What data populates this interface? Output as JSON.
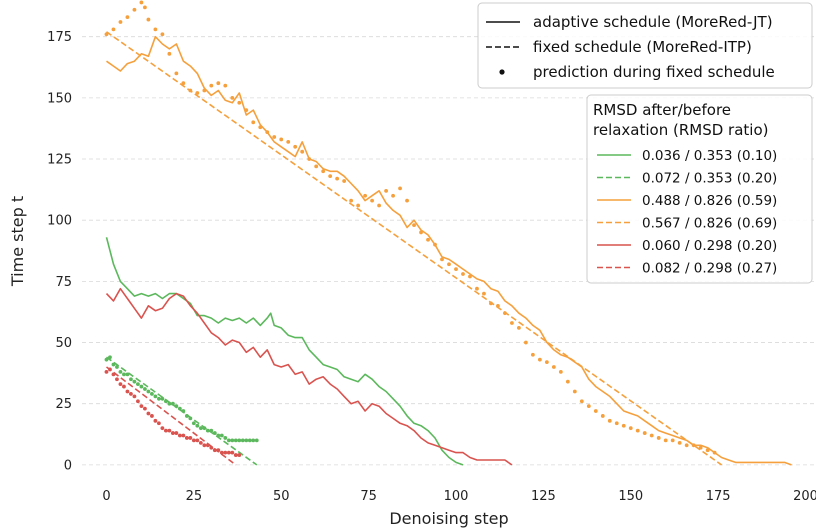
{
  "chart_data": {
    "type": "line",
    "xlabel": "Denoising step",
    "ylabel": "Time step t",
    "xlim": [
      -7,
      203
    ],
    "ylim": [
      -7,
      190
    ],
    "x_ticks": [
      0,
      25,
      50,
      75,
      100,
      125,
      150,
      175,
      200
    ],
    "y_ticks": [
      0,
      25,
      50,
      75,
      100,
      125,
      150,
      175
    ],
    "grid": "horizontal dashed",
    "style_legend": {
      "placement": "top-right",
      "entries": [
        {
          "label": "adaptive schedule (MoreRed-JT)",
          "style": "solid"
        },
        {
          "label": "fixed schedule (MoreRed-ITP)",
          "style": "dashed"
        },
        {
          "label": "prediction during fixed schedule",
          "style": "dot"
        }
      ]
    },
    "rmsd_legend": {
      "placement": "right",
      "title_lines": [
        "RMSD after/before",
        "relaxation (RMSD ratio)"
      ],
      "entries": [
        {
          "label": "0.036 / 0.353 (0.10)",
          "style": "solid",
          "color": "#5cb85c"
        },
        {
          "label": "0.072 / 0.353 (0.20)",
          "style": "dashed",
          "color": "#5cb85c"
        },
        {
          "label": "0.488 / 0.826 (0.59)",
          "style": "solid",
          "color": "#f5a03c"
        },
        {
          "label": "0.567 / 0.826 (0.69)",
          "style": "dashed",
          "color": "#f5a03c"
        },
        {
          "label": "0.060 / 0.298 (0.20)",
          "style": "solid",
          "color": "#d9534f"
        },
        {
          "label": "0.082 / 0.298 (0.27)",
          "style": "dashed",
          "color": "#d9534f"
        }
      ]
    },
    "series": [
      {
        "color": "#5cb85c",
        "kind": "line",
        "dash": false,
        "x": [
          0,
          2,
          4,
          6,
          8,
          10,
          12,
          14,
          16,
          18,
          20,
          22,
          24,
          26,
          28,
          30,
          32,
          34,
          36,
          38,
          40,
          42,
          44,
          46,
          47,
          48,
          50,
          52,
          54,
          56,
          58,
          60,
          62,
          64,
          66,
          68,
          70,
          72,
          74,
          76,
          78,
          80,
          82,
          84,
          86,
          88,
          90,
          92,
          94,
          96,
          98,
          100,
          102
        ],
        "y": [
          93,
          82,
          75,
          72,
          69,
          70,
          69,
          70,
          68,
          70,
          70,
          68,
          66,
          61,
          61,
          60,
          58,
          60,
          59,
          60,
          58,
          60,
          57,
          60,
          62,
          57,
          56,
          53,
          52,
          52,
          47,
          44,
          41,
          40,
          39,
          36,
          35,
          34,
          37,
          35,
          32,
          30,
          27,
          24,
          20,
          17,
          16,
          14,
          11,
          6,
          3,
          1,
          0
        ]
      },
      {
        "color": "#5cb85c",
        "kind": "line",
        "dash": true,
        "x": [
          0,
          43
        ],
        "y": [
          44,
          0
        ]
      },
      {
        "color": "#5cb85c",
        "kind": "dots",
        "x": [
          0,
          1,
          2,
          3,
          4,
          5,
          6,
          7,
          8,
          9,
          10,
          11,
          12,
          13,
          14,
          15,
          16,
          17,
          18,
          19,
          20,
          21,
          22,
          23,
          24,
          25,
          26,
          27,
          28,
          29,
          30,
          31,
          32,
          33,
          34,
          35,
          36,
          37,
          38,
          39,
          40,
          41,
          42,
          43
        ],
        "y": [
          43,
          44,
          41,
          40,
          38,
          37,
          37,
          35,
          34,
          33,
          32,
          31,
          30,
          29,
          28,
          27,
          27,
          26,
          25,
          25,
          24,
          23,
          22,
          20,
          19,
          17,
          16,
          15,
          15,
          14,
          14,
          13,
          12,
          12,
          11,
          10,
          10,
          10,
          10,
          10,
          10,
          10,
          10,
          10
        ]
      },
      {
        "color": "#f5a03c",
        "kind": "line",
        "dash": false,
        "x": [
          0,
          2,
          4,
          6,
          8,
          10,
          12,
          14,
          16,
          18,
          20,
          22,
          24,
          26,
          28,
          30,
          32,
          34,
          36,
          38,
          40,
          42,
          44,
          46,
          48,
          50,
          52,
          54,
          56,
          58,
          60,
          62,
          64,
          66,
          68,
          70,
          72,
          74,
          76,
          78,
          80,
          82,
          84,
          86,
          88,
          90,
          92,
          94,
          96,
          98,
          100,
          102,
          104,
          106,
          108,
          110,
          112,
          114,
          116,
          118,
          120,
          122,
          124,
          126,
          128,
          130,
          132,
          134,
          136,
          138,
          140,
          142,
          144,
          146,
          148,
          150,
          152,
          154,
          156,
          158,
          160,
          162,
          164,
          166,
          168,
          170,
          172,
          174,
          176,
          178,
          180,
          182,
          184,
          186,
          188,
          190,
          192,
          194,
          196
        ],
        "y": [
          165,
          163,
          161,
          164,
          165,
          168,
          167,
          175,
          172,
          170,
          172,
          165,
          163,
          160,
          154,
          151,
          153,
          149,
          148,
          152,
          143,
          145,
          139,
          136,
          132,
          130,
          128,
          126,
          132,
          125,
          124,
          121,
          120,
          120,
          118,
          115,
          112,
          108,
          110,
          112,
          107,
          104,
          102,
          97,
          100,
          96,
          94,
          90,
          85,
          84,
          82,
          80,
          78,
          76,
          75,
          72,
          71,
          67,
          65,
          62,
          60,
          57,
          55,
          50,
          47,
          45,
          44,
          42,
          40,
          35,
          32,
          30,
          28,
          25,
          22,
          21,
          20,
          18,
          16,
          14,
          13,
          12,
          11,
          10,
          8,
          8,
          7,
          5,
          3,
          2,
          1,
          1,
          1,
          1,
          1,
          1,
          1,
          1,
          0
        ]
      },
      {
        "color": "#f5a03c",
        "kind": "line",
        "dash": true,
        "x": [
          0,
          176
        ],
        "y": [
          177,
          0
        ]
      },
      {
        "color": "#f5a03c",
        "kind": "dots",
        "x": [
          0,
          2,
          4,
          6,
          8,
          10,
          11,
          12,
          14,
          16,
          18,
          20,
          22,
          24,
          26,
          28,
          30,
          32,
          34,
          36,
          38,
          40,
          42,
          44,
          46,
          48,
          50,
          52,
          54,
          56,
          58,
          60,
          62,
          64,
          66,
          68,
          70,
          72,
          74,
          76,
          78,
          80,
          82,
          84,
          86,
          88,
          90,
          92,
          94,
          96,
          98,
          100,
          102,
          104,
          106,
          108,
          110,
          112,
          114,
          116,
          118,
          120,
          122,
          124,
          126,
          128,
          130,
          132,
          134,
          136,
          138,
          140,
          142,
          144,
          146,
          148,
          150,
          152,
          154,
          156,
          158,
          160,
          162,
          164,
          166,
          168,
          170,
          172,
          174
        ],
        "y": [
          176,
          178,
          181,
          183,
          186,
          189,
          187,
          182,
          178,
          176,
          168,
          160,
          156,
          153,
          152,
          153,
          155,
          156,
          155,
          150,
          148,
          145,
          140,
          138,
          136,
          134,
          133,
          132,
          130,
          128,
          125,
          122,
          120,
          118,
          117,
          116,
          108,
          106,
          110,
          108,
          106,
          112,
          110,
          113,
          108,
          98,
          95,
          92,
          90,
          84,
          82,
          80,
          78,
          77,
          72,
          70,
          66,
          65,
          62,
          58,
          56,
          50,
          45,
          43,
          42,
          40,
          38,
          34,
          30,
          26,
          24,
          22,
          20,
          18,
          17,
          16,
          15,
          14,
          13,
          12,
          11,
          10,
          10,
          9,
          8,
          8,
          7,
          6,
          5
        ]
      },
      {
        "color": "#d9534f",
        "kind": "line",
        "dash": false,
        "x": [
          0,
          2,
          4,
          6,
          8,
          10,
          12,
          14,
          16,
          18,
          20,
          22,
          24,
          26,
          28,
          30,
          32,
          34,
          36,
          38,
          40,
          42,
          44,
          46,
          48,
          50,
          52,
          54,
          56,
          58,
          60,
          62,
          64,
          66,
          68,
          70,
          72,
          74,
          76,
          78,
          80,
          82,
          84,
          86,
          88,
          90,
          92,
          94,
          96,
          98,
          100,
          102,
          104,
          106,
          108,
          110,
          112,
          114,
          116
        ],
        "y": [
          70,
          67,
          72,
          68,
          64,
          60,
          65,
          63,
          64,
          68,
          70,
          69,
          65,
          62,
          58,
          54,
          52,
          49,
          51,
          50,
          46,
          48,
          44,
          47,
          41,
          40,
          41,
          37,
          38,
          33,
          35,
          36,
          33,
          31,
          28,
          25,
          26,
          22,
          25,
          24,
          21,
          19,
          17,
          16,
          14,
          11,
          9,
          8,
          7,
          6,
          5,
          5,
          3,
          2,
          2,
          2,
          2,
          2,
          0
        ]
      },
      {
        "color": "#d9534f",
        "kind": "line",
        "dash": true,
        "x": [
          0,
          37
        ],
        "y": [
          40,
          0
        ]
      },
      {
        "color": "#d9534f",
        "kind": "dots",
        "x": [
          0,
          1,
          2,
          3,
          4,
          5,
          6,
          7,
          8,
          9,
          10,
          11,
          12,
          13,
          14,
          15,
          16,
          17,
          18,
          19,
          20,
          21,
          22,
          23,
          24,
          25,
          26,
          27,
          28,
          29,
          30,
          31,
          32,
          33,
          34,
          35,
          36,
          37,
          38
        ],
        "y": [
          38,
          39,
          37,
          35,
          33,
          32,
          30,
          29,
          28,
          26,
          24,
          23,
          21,
          20,
          18,
          17,
          15,
          14,
          14,
          13,
          13,
          12,
          12,
          11,
          11,
          10,
          10,
          9,
          8,
          8,
          7,
          6,
          6,
          5,
          5,
          5,
          5,
          4,
          4
        ]
      }
    ]
  }
}
